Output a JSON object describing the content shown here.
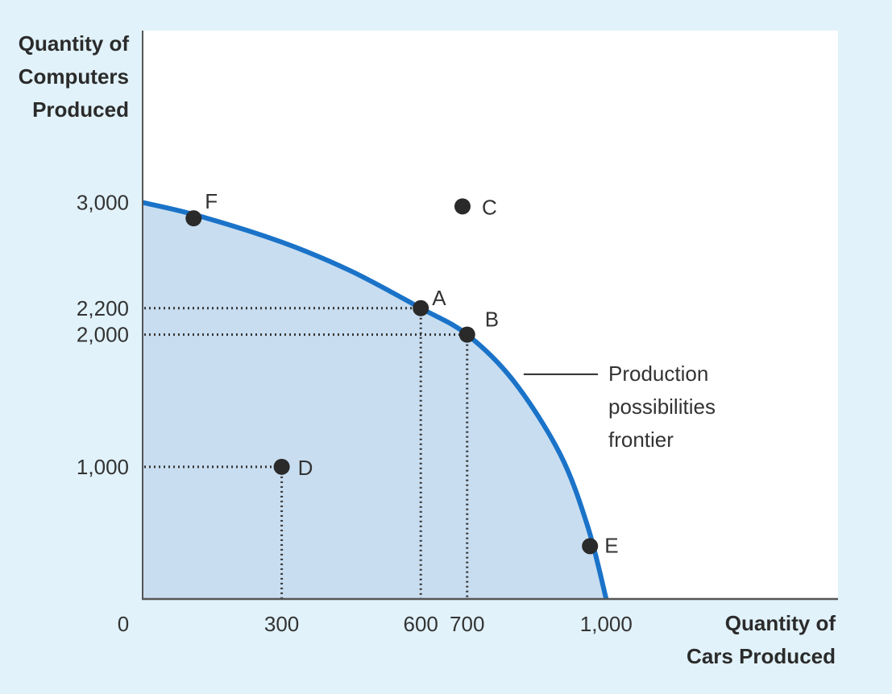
{
  "chart_data": {
    "type": "line",
    "x_label_lines": [
      "Quantity of",
      "Cars Produced"
    ],
    "y_label_lines": [
      "Quantity of",
      "Computers",
      "Produced"
    ],
    "xlim": [
      0,
      1500
    ],
    "ylim": [
      0,
      4300
    ],
    "x_ticks": [
      {
        "value": 0,
        "label": "0"
      },
      {
        "value": 300,
        "label": "300"
      },
      {
        "value": 600,
        "label": "600"
      },
      {
        "value": 700,
        "label": "700"
      },
      {
        "value": 1000,
        "label": "1,000"
      }
    ],
    "y_ticks": [
      {
        "value": 1000,
        "label": "1,000"
      },
      {
        "value": 2000,
        "label": "2,000"
      },
      {
        "value": 2200,
        "label": "2,200"
      },
      {
        "value": 3000,
        "label": "3,000"
      }
    ],
    "frontier": {
      "points": [
        [
          0,
          3000
        ],
        [
          120,
          2900
        ],
        [
          300,
          2700
        ],
        [
          450,
          2480
        ],
        [
          600,
          2200
        ],
        [
          700,
          2000
        ],
        [
          800,
          1650
        ],
        [
          900,
          1100
        ],
        [
          960,
          550
        ],
        [
          1000,
          0
        ]
      ],
      "fill": "#c8ddf0",
      "stroke": "#1a73c8"
    },
    "points": [
      {
        "label": "F",
        "x": 110,
        "y": 2880
      },
      {
        "label": "C",
        "x": 690,
        "y": 2970
      },
      {
        "label": "A",
        "x": 600,
        "y": 2200
      },
      {
        "label": "B",
        "x": 700,
        "y": 2000
      },
      {
        "label": "D",
        "x": 300,
        "y": 1000
      },
      {
        "label": "E",
        "x": 965,
        "y": 400
      }
    ],
    "guides": [
      {
        "x": 600,
        "y": 2200
      },
      {
        "x": 700,
        "y": 2000
      },
      {
        "x": 300,
        "y": 1000
      }
    ],
    "annotation": {
      "lines": [
        "Production",
        "possibilities",
        "frontier"
      ],
      "pointer": {
        "x": 815,
        "y": 1700
      }
    }
  }
}
